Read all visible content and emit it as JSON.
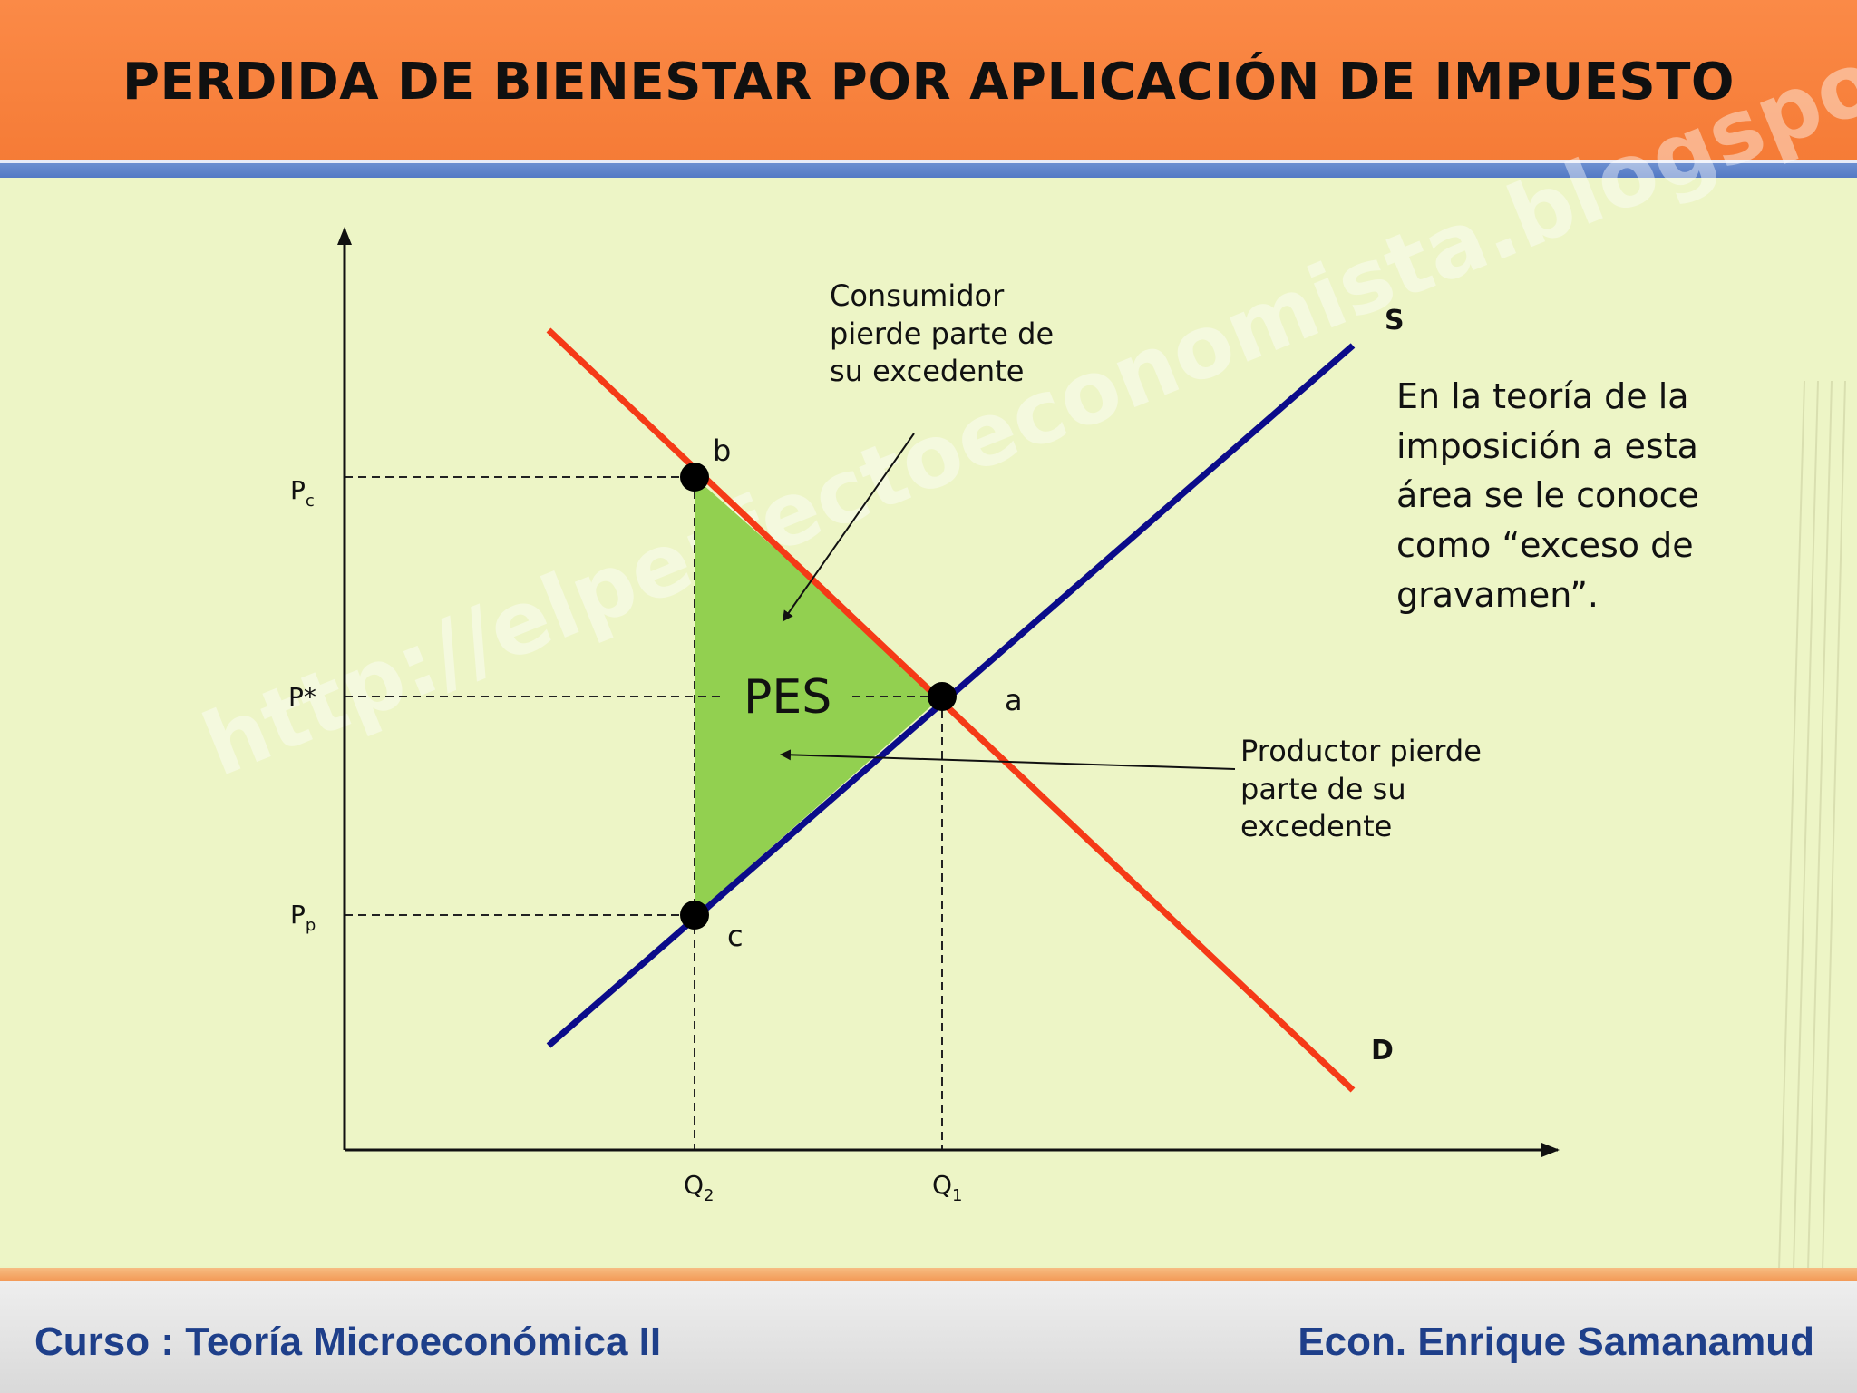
{
  "title": "PERDIDA DE BIENESTAR POR APLICACIÓN DE IMPUESTO",
  "footer": {
    "course": "Curso : Teoría Microeconómica II",
    "author": "Econ. Enrique Samanamud"
  },
  "watermark": "http://elperfectoeconomista.blogspot.com/",
  "diagram": {
    "curves": [
      {
        "name": "S",
        "label": "S",
        "color": "#0b0b8a"
      },
      {
        "name": "D",
        "label": "D",
        "color": "#f53a17"
      }
    ],
    "price_labels": {
      "pc_main": "P",
      "pc_sub": "c",
      "pstar": "P*",
      "pp_main": "P",
      "pp_sub": "p"
    },
    "quantity_labels": {
      "q2_main": "Q",
      "q2_sub": "2",
      "q1_main": "Q",
      "q1_sub": "1"
    },
    "points": {
      "b": "b",
      "a": "a",
      "c": "c"
    },
    "area_label": "PES",
    "area_color": "#92d050",
    "consumer_note": "Consumidor\npierde  parte de\nsu excedente",
    "producer_note": "Productor pierde\nparte de su\nexcedente",
    "side_note": "En la teoría de la\nimposición a esta\nárea se le conoce\ncomo “exceso de\ngravamen”."
  }
}
